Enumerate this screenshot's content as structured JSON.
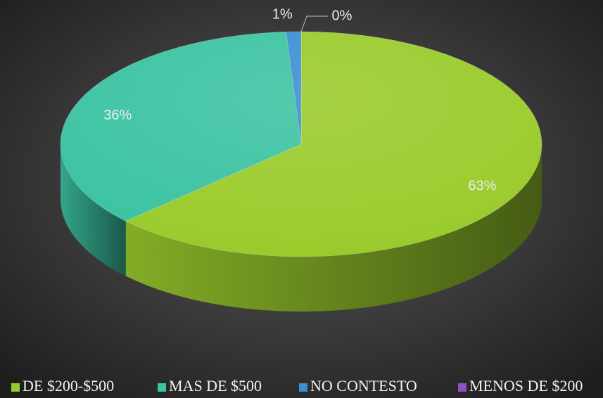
{
  "chart_data": {
    "type": "pie",
    "categories": [
      "DE $200-$500",
      "MAS DE $500",
      "NO CONTESTO",
      "MENOS DE $200"
    ],
    "values": [
      63,
      36,
      1,
      0
    ],
    "value_labels": [
      "63%",
      "36%",
      "1%",
      "0%"
    ],
    "colors": [
      "#9acb2c",
      "#3cc3a2",
      "#3b8fd4",
      "#8a52c4"
    ],
    "legend": "bottom",
    "three_d": true
  }
}
